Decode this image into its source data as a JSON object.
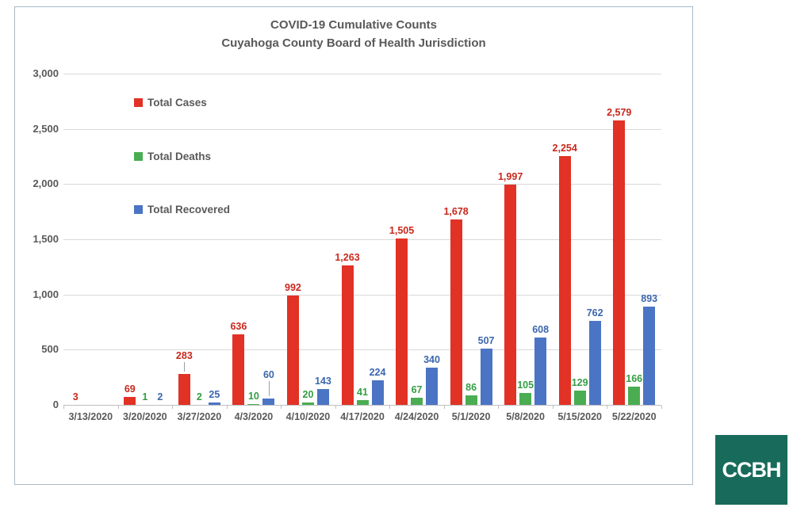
{
  "chart": {
    "title_line1": "COVID-19 Cumulative Counts",
    "title_line2": "Cuyahoga County Board of Health Jurisdiction"
  },
  "legend": {
    "items": [
      {
        "label": "Total Cases",
        "color": "#e23125"
      },
      {
        "label": "Total Deaths",
        "color": "#4aad52"
      },
      {
        "label": "Total Recovered",
        "color": "#4b74c4"
      }
    ]
  },
  "logo": {
    "text": "CCBH",
    "background": "#186b5b",
    "text_color": "#ffffff"
  },
  "chart_data": {
    "type": "bar",
    "title": "COVID-19 Cumulative Counts",
    "subtitle": "Cuyahoga County Board of Health Jurisdiction",
    "categories": [
      "3/13/2020",
      "3/20/2020",
      "3/27/2020",
      "4/3/2020",
      "4/10/2020",
      "4/17/2020",
      "4/24/2020",
      "5/1/2020",
      "5/8/2020",
      "5/15/2020",
      "5/22/2020"
    ],
    "series": [
      {
        "name": "Total Cases",
        "color": "#e23125",
        "label_color": "#c9281d",
        "values": [
          3,
          69,
          283,
          636,
          992,
          1263,
          1505,
          1678,
          1997,
          2254,
          2579
        ],
        "labels": [
          "3",
          "69",
          "283",
          "636",
          "992",
          "1,263",
          "1,505",
          "1,678",
          "1,997",
          "2,254",
          "2,579"
        ]
      },
      {
        "name": "Total Deaths",
        "color": "#4aad52",
        "label_color": "#339e43",
        "values": [
          0,
          1,
          2,
          10,
          20,
          41,
          67,
          86,
          105,
          129,
          166
        ],
        "labels": [
          "",
          "1",
          "2",
          "10",
          "20",
          "41",
          "67",
          "86",
          "105",
          "129",
          "166"
        ]
      },
      {
        "name": "Total Recovered",
        "color": "#4b74c4",
        "label_color": "#3b66ad",
        "values": [
          0,
          2,
          25,
          60,
          143,
          224,
          340,
          507,
          608,
          762,
          893
        ],
        "labels": [
          "",
          "2",
          "25",
          "60",
          "143",
          "224",
          "340",
          "507",
          "608",
          "762",
          "893"
        ]
      }
    ],
    "y_axis": {
      "min": 0,
      "max": 3000,
      "step": 500,
      "tick_labels": [
        "0",
        "500",
        "1,000",
        "1,500",
        "2,000",
        "2,500",
        "3,000"
      ]
    },
    "grid": true,
    "legend_position": "inside-top-left",
    "label_leaders": [
      {
        "series": 0,
        "index": 2,
        "lift": 13
      },
      {
        "series": 2,
        "index": 3,
        "lift": 20
      }
    ]
  }
}
